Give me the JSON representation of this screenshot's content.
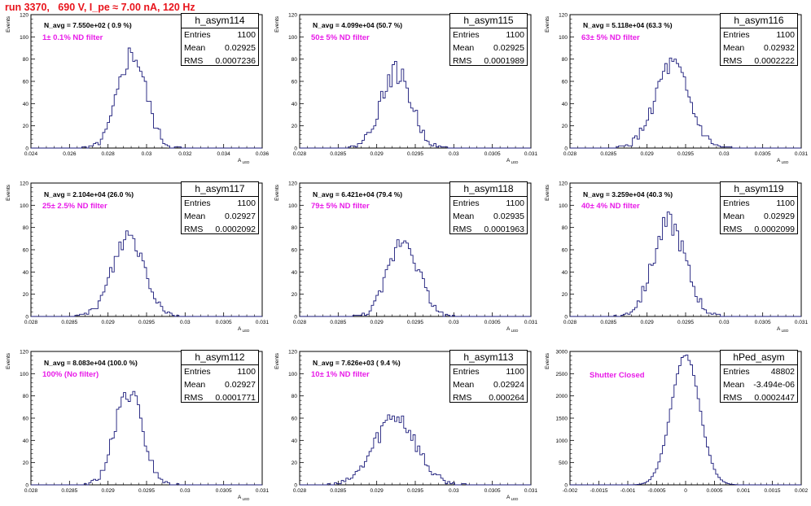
{
  "title": "run 3370,   690 V, I_pe ≈ 7.00 nA, 120 Hz",
  "colors": {
    "title": "#e8141c",
    "filter": "#e81be8",
    "hist": "#1a1a7a"
  },
  "chart_data": [
    {
      "type": "histogram",
      "name": "h_asym114",
      "ylabel": "Events",
      "xlabel": "A_{LED}",
      "xlim": [
        0.024,
        0.036
      ],
      "ylim": [
        0,
        120
      ],
      "xticks": [
        "0.024",
        "0.026",
        "0.028",
        "0.03",
        "0.032",
        "0.034",
        "0.036"
      ],
      "yticks": [
        "0",
        "20",
        "40",
        "60",
        "80",
        "100",
        "120"
      ],
      "stats": {
        "Entries": "1100",
        "Mean": "0.02925",
        "RMS": "0.0007236"
      },
      "navg": "N_avg = 7.550e+02 ( 0.9 %)",
      "filter": "1± 0.1% ND filter",
      "mean": 0.02925,
      "rms": 0.0007236,
      "peak": 85
    },
    {
      "type": "histogram",
      "name": "h_asym115",
      "ylabel": "Events",
      "xlabel": "A_{LED}",
      "xlim": [
        0.028,
        0.031
      ],
      "ylim": [
        0,
        120
      ],
      "xticks": [
        "0.028",
        "0.0285",
        "0.029",
        "0.0295",
        "0.03",
        "0.0305",
        "0.031"
      ],
      "yticks": [
        "0",
        "20",
        "40",
        "60",
        "80",
        "100",
        "120"
      ],
      "stats": {
        "Entries": "1100",
        "Mean": "0.02925",
        "RMS": "0.0001989"
      },
      "navg": "N_avg = 4.099e+04 (50.7 %)",
      "filter": "50± 5% ND filter",
      "mean": 0.02925,
      "rms": 0.0001989,
      "peak": 68
    },
    {
      "type": "histogram",
      "name": "h_asym116",
      "ylabel": "Events",
      "xlabel": "A_{LED}",
      "xlim": [
        0.028,
        0.031
      ],
      "ylim": [
        0,
        120
      ],
      "xticks": [
        "0.028",
        "0.0285",
        "0.029",
        "0.0295",
        "0.03",
        "0.0305",
        "0.031"
      ],
      "yticks": [
        "0",
        "20",
        "40",
        "60",
        "80",
        "100",
        "120"
      ],
      "stats": {
        "Entries": "1100",
        "Mean": "0.02932",
        "RMS": "0.0002222"
      },
      "navg": "N_avg = 5.118e+04 (63.3 %)",
      "filter": "63± 5% ND filter",
      "mean": 0.02932,
      "rms": 0.0002222,
      "peak": 73
    },
    {
      "type": "histogram",
      "name": "h_asym117",
      "ylabel": "Events",
      "xlabel": "A_{LED}",
      "xlim": [
        0.028,
        0.031
      ],
      "ylim": [
        0,
        120
      ],
      "xticks": [
        "0.028",
        "0.0285",
        "0.029",
        "0.0295",
        "0.03",
        "0.0305",
        "0.031"
      ],
      "yticks": [
        "0",
        "20",
        "40",
        "60",
        "80",
        "100",
        "120"
      ],
      "stats": {
        "Entries": "1100",
        "Mean": "0.02927",
        "RMS": "0.0002092"
      },
      "navg": "N_avg = 2.104e+04 (26.0 %)",
      "filter": "25± 2.5% ND filter",
      "mean": 0.02927,
      "rms": 0.0002092,
      "peak": 73
    },
    {
      "type": "histogram",
      "name": "h_asym118",
      "ylabel": "Events",
      "xlabel": "A_{LED}",
      "xlim": [
        0.028,
        0.031
      ],
      "ylim": [
        0,
        120
      ],
      "xticks": [
        "0.028",
        "0.0285",
        "0.029",
        "0.0295",
        "0.03",
        "0.0305",
        "0.031"
      ],
      "yticks": [
        "0",
        "20",
        "40",
        "60",
        "80",
        "100",
        "120"
      ],
      "stats": {
        "Entries": "1100",
        "Mean": "0.02935",
        "RMS": "0.0001963"
      },
      "navg": "N_avg = 6.421e+04 (79.4 %)",
      "filter": "79± 5% ND filter",
      "mean": 0.02935,
      "rms": 0.0001963,
      "peak": 70
    },
    {
      "type": "histogram",
      "name": "h_asym119",
      "ylabel": "Events",
      "xlabel": "A_{LED}",
      "xlim": [
        0.028,
        0.031
      ],
      "ylim": [
        0,
        120
      ],
      "xticks": [
        "0.028",
        "0.0285",
        "0.029",
        "0.0295",
        "0.03",
        "0.0305",
        "0.031"
      ],
      "yticks": [
        "0",
        "20",
        "40",
        "60",
        "80",
        "100",
        "120"
      ],
      "stats": {
        "Entries": "1100",
        "Mean": "0.02929",
        "RMS": "0.0002099"
      },
      "navg": "N_avg = 3.259e+04 (40.3 %)",
      "filter": "40± 4% ND filter",
      "mean": 0.02929,
      "rms": 0.0002099,
      "peak": 84
    },
    {
      "type": "histogram",
      "name": "h_asym112",
      "ylabel": "Events",
      "xlabel": "A_{LED}",
      "xlim": [
        0.028,
        0.031
      ],
      "ylim": [
        0,
        120
      ],
      "xticks": [
        "0.028",
        "0.0285",
        "0.029",
        "0.0295",
        "0.03",
        "0.0305",
        "0.031"
      ],
      "yticks": [
        "0",
        "20",
        "40",
        "60",
        "80",
        "100",
        "120"
      ],
      "stats": {
        "Entries": "1100",
        "Mean": "0.02927",
        "RMS": "0.0001771"
      },
      "navg": "N_avg = 8.083e+04 (100.0 %)",
      "filter": "100% (No filter)",
      "mean": 0.02927,
      "rms": 0.0001771,
      "peak": 82
    },
    {
      "type": "histogram",
      "name": "h_asym113",
      "ylabel": "Events",
      "xlabel": "A_{LED}",
      "xlim": [
        0.028,
        0.031
      ],
      "ylim": [
        0,
        120
      ],
      "xticks": [
        "0.028",
        "0.0285",
        "0.029",
        "0.0295",
        "0.03",
        "0.0305",
        "0.031"
      ],
      "yticks": [
        "0",
        "20",
        "40",
        "60",
        "80",
        "100",
        "120"
      ],
      "stats": {
        "Entries": "1100",
        "Mean": "0.02924",
        "RMS": "0.000264"
      },
      "navg": "N_avg = 7.626e+03 ( 9.4 %)",
      "filter": "10± 1% ND filter",
      "mean": 0.02924,
      "rms": 0.000264,
      "peak": 63
    },
    {
      "type": "histogram",
      "name": "hPed_asym",
      "ylabel": "Events",
      "xlabel": "",
      "xlim": [
        -0.002,
        0.002
      ],
      "ylim": [
        0,
        3000
      ],
      "xticks": [
        "-0.002",
        "-0.0015",
        "-0.001",
        "-0.0005",
        "0",
        "0.0005",
        "0.001",
        "0.0015",
        "0.002"
      ],
      "yticks": [
        "0",
        "500",
        "1000",
        "1500",
        "2000",
        "2500",
        "3000"
      ],
      "stats": {
        "Entries": "48802",
        "Mean": "-3.494e-06",
        "RMS": "0.0002447"
      },
      "navg": "",
      "filter": "Shutter Closed",
      "mean": -3.494e-06,
      "rms": 0.0002447,
      "peak": 2920
    }
  ]
}
